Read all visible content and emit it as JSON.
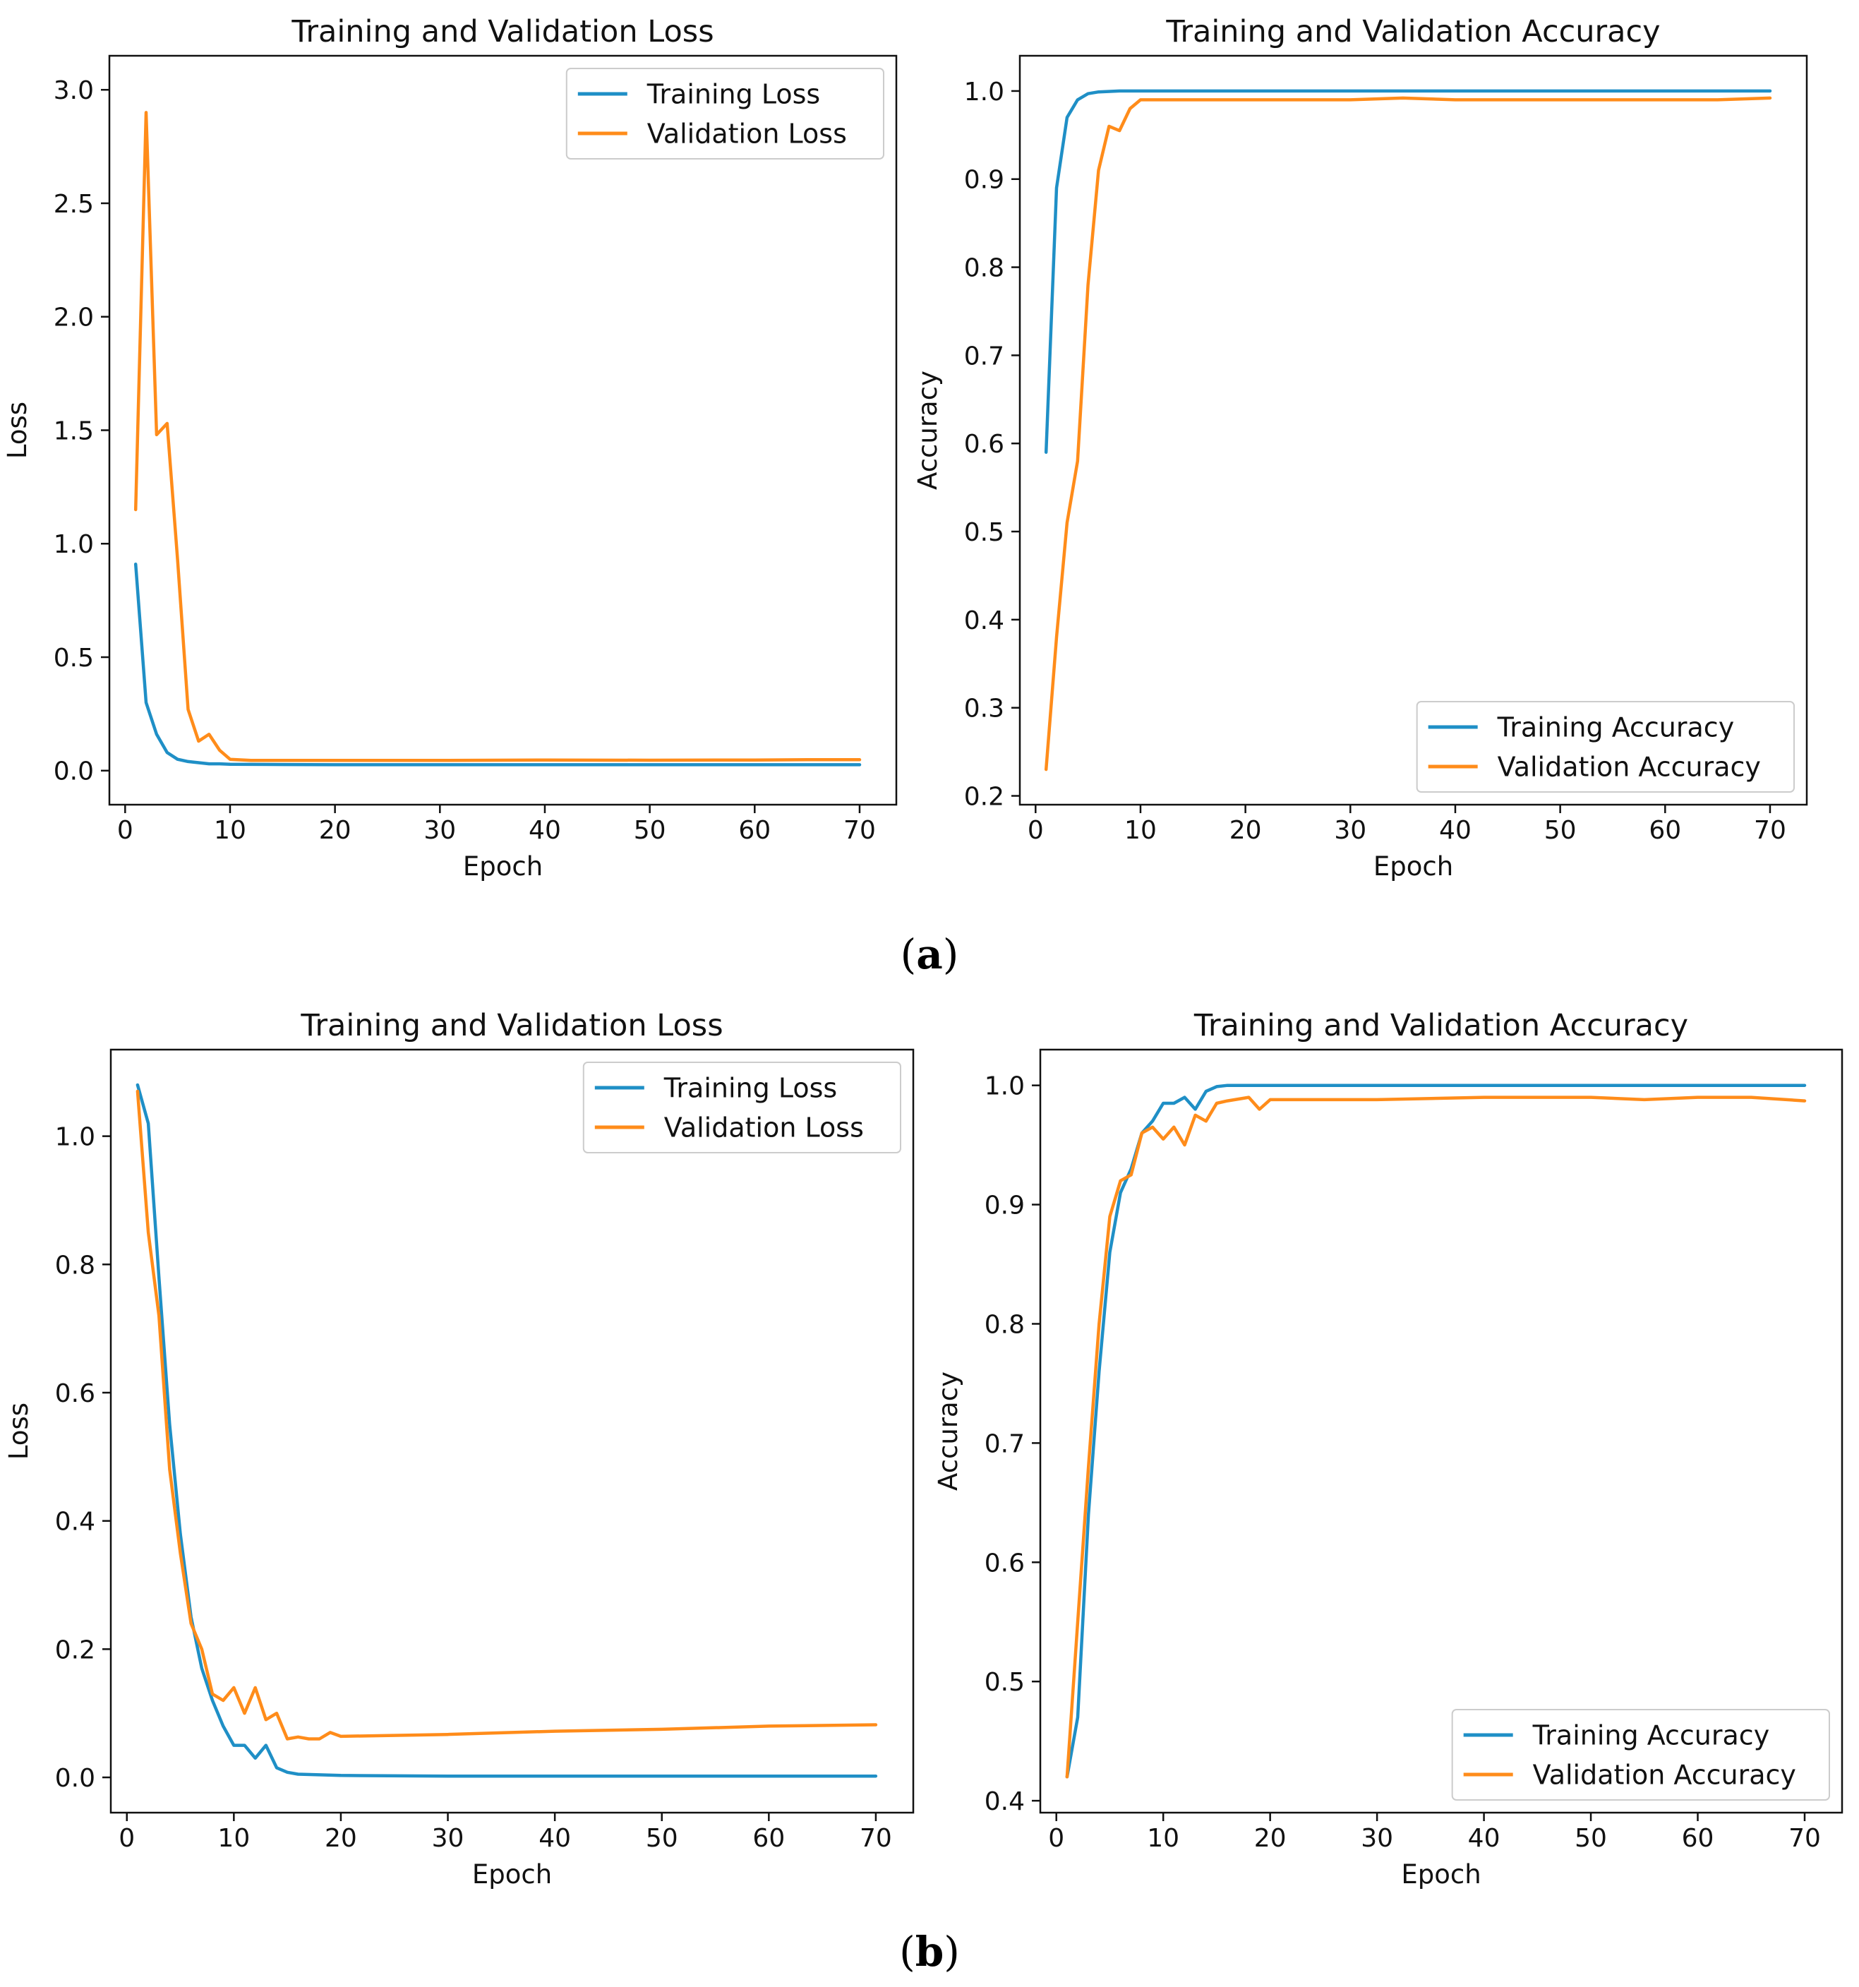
{
  "chart_data": [
    {
      "id": "a_loss",
      "type": "line",
      "title": "Training and Validation Loss",
      "xlabel": "Epoch",
      "ylabel": "Loss",
      "xlim": [
        -1.5,
        73.5
      ],
      "ylim": [
        -0.15,
        3.15
      ],
      "xticks": [
        0,
        10,
        20,
        30,
        40,
        50,
        60,
        70
      ],
      "yticks": [
        0.0,
        0.5,
        1.0,
        1.5,
        2.0,
        2.5,
        3.0
      ],
      "ytick_decimals": 1,
      "legend_position": "upper right",
      "series": [
        {
          "name": "Training Loss",
          "color": "#1f8fc6",
          "x": [
            1,
            2,
            3,
            4,
            5,
            6,
            7,
            8,
            9,
            10,
            15,
            20,
            30,
            40,
            50,
            60,
            70
          ],
          "y": [
            0.91,
            0.3,
            0.16,
            0.08,
            0.05,
            0.04,
            0.035,
            0.03,
            0.03,
            0.028,
            0.027,
            0.026,
            0.026,
            0.026,
            0.026,
            0.026,
            0.026
          ]
        },
        {
          "name": "Validation Loss",
          "color": "#ff8c1a",
          "x": [
            1,
            2,
            3,
            4,
            5,
            6,
            7,
            8,
            9,
            10,
            12,
            20,
            30,
            40,
            50,
            60,
            65,
            70
          ],
          "y": [
            1.15,
            2.9,
            1.48,
            1.53,
            0.93,
            0.27,
            0.13,
            0.16,
            0.09,
            0.05,
            0.045,
            0.045,
            0.045,
            0.047,
            0.046,
            0.047,
            0.048,
            0.048
          ]
        }
      ]
    },
    {
      "id": "a_acc",
      "type": "line",
      "title": "Training and Validation Accuracy",
      "xlabel": "Epoch",
      "ylabel": "Accuracy",
      "xlim": [
        -1.5,
        73.5
      ],
      "ylim": [
        0.19,
        1.04
      ],
      "xticks": [
        0,
        10,
        20,
        30,
        40,
        50,
        60,
        70
      ],
      "yticks": [
        0.2,
        0.3,
        0.4,
        0.5,
        0.6,
        0.7,
        0.8,
        0.9,
        1.0
      ],
      "ytick_decimals": 1,
      "legend_position": "lower right",
      "series": [
        {
          "name": "Training Accuracy",
          "color": "#1f8fc6",
          "x": [
            1,
            2,
            3,
            4,
            5,
            6,
            8,
            10,
            20,
            30,
            40,
            50,
            60,
            70
          ],
          "y": [
            0.59,
            0.89,
            0.97,
            0.99,
            0.997,
            0.999,
            1.0,
            1.0,
            1.0,
            1.0,
            1.0,
            1.0,
            1.0,
            1.0
          ]
        },
        {
          "name": "Validation Accuracy",
          "color": "#ff8c1a",
          "x": [
            1,
            2,
            3,
            4,
            5,
            6,
            7,
            8,
            9,
            10,
            11,
            15,
            20,
            25,
            30,
            35,
            40,
            45,
            50,
            55,
            60,
            65,
            70
          ],
          "y": [
            0.23,
            0.38,
            0.51,
            0.58,
            0.78,
            0.91,
            0.96,
            0.955,
            0.98,
            0.99,
            0.99,
            0.99,
            0.99,
            0.99,
            0.99,
            0.992,
            0.99,
            0.99,
            0.99,
            0.99,
            0.99,
            0.99,
            0.992
          ]
        }
      ]
    },
    {
      "id": "b_loss",
      "type": "line",
      "title": "Training and Validation Loss",
      "xlabel": "Epoch",
      "ylabel": "Loss",
      "xlim": [
        -1.5,
        73.5
      ],
      "ylim": [
        -0.055,
        1.135
      ],
      "xticks": [
        0,
        10,
        20,
        30,
        40,
        50,
        60,
        70
      ],
      "yticks": [
        0.0,
        0.2,
        0.4,
        0.6,
        0.8,
        1.0
      ],
      "ytick_decimals": 1,
      "legend_position": "upper right",
      "series": [
        {
          "name": "Training Loss",
          "color": "#1f8fc6",
          "x": [
            1,
            2,
            3,
            4,
            5,
            6,
            7,
            8,
            9,
            10,
            11,
            12,
            13,
            14,
            15,
            16,
            18,
            20,
            30,
            40,
            50,
            60,
            70
          ],
          "y": [
            1.08,
            1.02,
            0.78,
            0.55,
            0.38,
            0.25,
            0.17,
            0.12,
            0.08,
            0.05,
            0.05,
            0.03,
            0.05,
            0.015,
            0.008,
            0.005,
            0.004,
            0.003,
            0.002,
            0.002,
            0.002,
            0.002,
            0.002
          ]
        },
        {
          "name": "Validation Loss",
          "color": "#ff8c1a",
          "x": [
            1,
            2,
            3,
            4,
            5,
            6,
            7,
            8,
            9,
            10,
            11,
            12,
            13,
            14,
            15,
            16,
            17,
            18,
            19,
            20,
            30,
            40,
            50,
            60,
            70
          ],
          "y": [
            1.07,
            0.85,
            0.72,
            0.48,
            0.35,
            0.24,
            0.2,
            0.13,
            0.12,
            0.14,
            0.1,
            0.14,
            0.09,
            0.1,
            0.06,
            0.063,
            0.06,
            0.06,
            0.07,
            0.064,
            0.067,
            0.072,
            0.075,
            0.08,
            0.082
          ]
        }
      ]
    },
    {
      "id": "b_acc",
      "type": "line",
      "title": "Training and Validation Accuracy",
      "xlabel": "Epoch",
      "ylabel": "Accuracy",
      "xlim": [
        -1.5,
        73.5
      ],
      "ylim": [
        0.39,
        1.03
      ],
      "xticks": [
        0,
        10,
        20,
        30,
        40,
        50,
        60,
        70
      ],
      "yticks": [
        0.4,
        0.5,
        0.6,
        0.7,
        0.8,
        0.9,
        1.0
      ],
      "ytick_decimals": 1,
      "legend_position": "lower right",
      "series": [
        {
          "name": "Training Accuracy",
          "color": "#1f8fc6",
          "x": [
            1,
            2,
            3,
            4,
            5,
            6,
            7,
            8,
            9,
            10,
            11,
            12,
            13,
            14,
            15,
            16,
            20,
            30,
            40,
            50,
            60,
            70
          ],
          "y": [
            0.42,
            0.47,
            0.64,
            0.76,
            0.86,
            0.91,
            0.93,
            0.96,
            0.97,
            0.985,
            0.985,
            0.99,
            0.98,
            0.995,
            0.999,
            1.0,
            1.0,
            1.0,
            1.0,
            1.0,
            1.0,
            1.0
          ]
        },
        {
          "name": "Validation Accuracy",
          "color": "#ff8c1a",
          "x": [
            1,
            2,
            3,
            4,
            5,
            6,
            7,
            8,
            9,
            10,
            11,
            12,
            13,
            14,
            15,
            16,
            18,
            19,
            20,
            25,
            30,
            40,
            50,
            55,
            60,
            65,
            70
          ],
          "y": [
            0.42,
            0.55,
            0.68,
            0.8,
            0.89,
            0.92,
            0.925,
            0.96,
            0.965,
            0.955,
            0.965,
            0.95,
            0.975,
            0.97,
            0.985,
            0.987,
            0.99,
            0.98,
            0.988,
            0.988,
            0.988,
            0.99,
            0.99,
            0.988,
            0.99,
            0.99,
            0.987
          ]
        }
      ]
    }
  ],
  "panel_labels": [
    "a",
    "b"
  ]
}
